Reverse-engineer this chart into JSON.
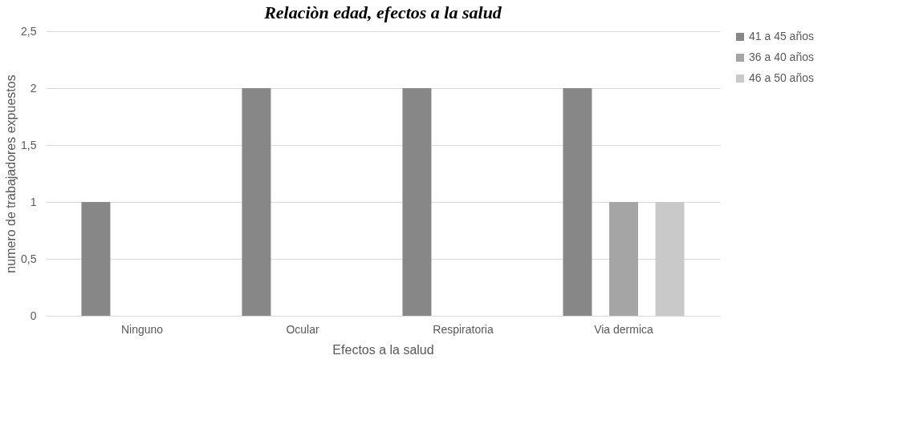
{
  "chart_data": {
    "type": "bar",
    "title": "Relaciòn edad, efectos a la salud",
    "xlabel": "Efectos a la salud",
    "ylabel": "numero de trabajadores expuestos",
    "categories": [
      "Ninguno",
      "Ocular",
      "Respiratoria",
      "Via dermica"
    ],
    "series": [
      {
        "name": "41 a 45 años",
        "color": "#878787",
        "values": [
          1,
          2,
          2,
          2
        ]
      },
      {
        "name": "36 a 40 años",
        "color": "#a5a5a5",
        "values": [
          0,
          0,
          0,
          1
        ]
      },
      {
        "name": "46 a 50 años",
        "color": "#c9c9c9",
        "values": [
          0,
          0,
          0,
          1
        ]
      }
    ],
    "ylim": [
      0,
      2.5
    ],
    "yticks": [
      0,
      {
        "value": 0.5,
        "label": "0,5"
      },
      1,
      {
        "value": 1.5,
        "label": "1,5"
      },
      2,
      {
        "value": 2.5,
        "label": "2,5"
      }
    ],
    "grid": "y",
    "legend": "right"
  }
}
